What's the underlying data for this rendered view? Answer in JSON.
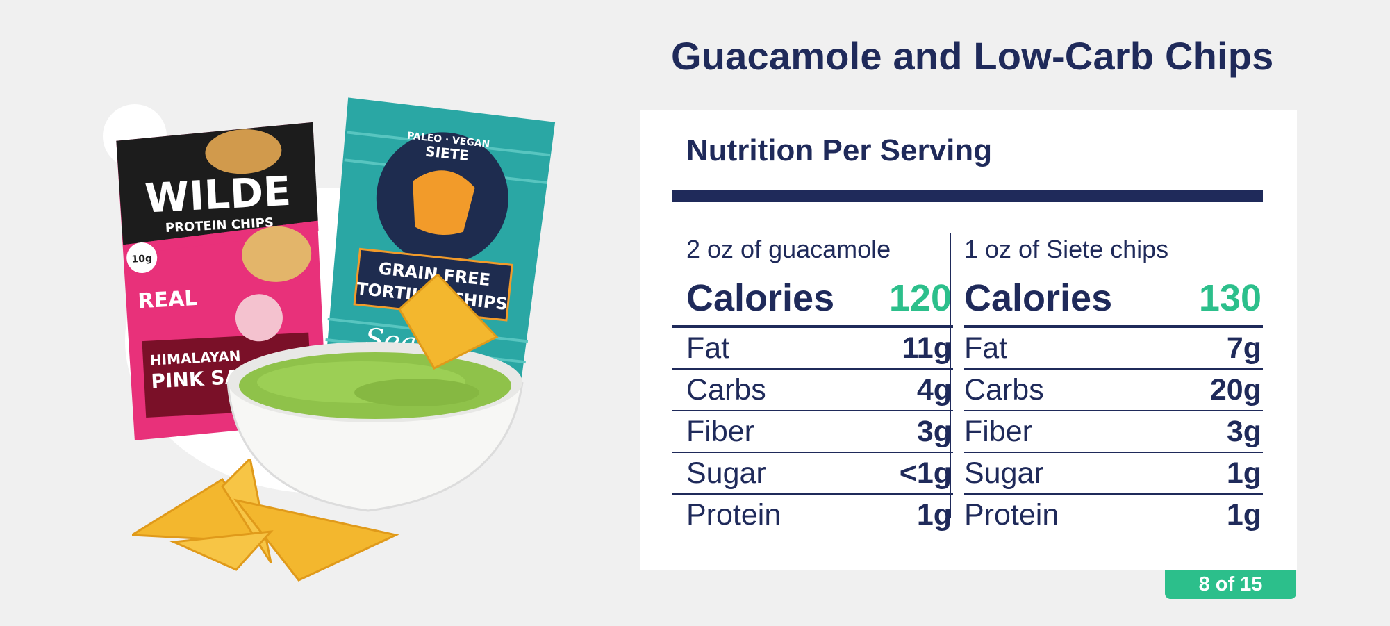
{
  "title": "Guacamole and Low-Carb Chips",
  "card": {
    "heading": "Nutrition Per Serving",
    "columns": [
      {
        "serving": "2 oz of guacamole",
        "calories_label": "Calories",
        "calories_value": "120",
        "rows": [
          {
            "label": "Fat",
            "value": "11g"
          },
          {
            "label": "Carbs",
            "value": "4g"
          },
          {
            "label": "Fiber",
            "value": "3g"
          },
          {
            "label": "Sugar",
            "value": "<1g"
          },
          {
            "label": "Protein",
            "value": "1g"
          }
        ]
      },
      {
        "serving": "1 oz of Siete chips",
        "calories_label": "Calories",
        "calories_value": "130",
        "rows": [
          {
            "label": "Fat",
            "value": "7g"
          },
          {
            "label": "Carbs",
            "value": "20g"
          },
          {
            "label": "Fiber",
            "value": "3g"
          },
          {
            "label": "Sugar",
            "value": "1g"
          },
          {
            "label": "Protein",
            "value": "1g"
          }
        ]
      }
    ]
  },
  "pager": "8 of 15",
  "illustration": {
    "wilde_bag": {
      "brand": "WILDE",
      "line": "PROTEIN CHIPS",
      "flavor_1": "HIMALAYAN",
      "flavor_2": "PINK SALT",
      "badge": "10g",
      "real": "REAL"
    },
    "siete_bag": {
      "brand": "SIETE",
      "tag": "PALEO · VEGAN",
      "line_1": "GRAIN FREE",
      "line_2": "TORTILLA CHIPS",
      "flavor": "Sea"
    }
  },
  "colors": {
    "navy": "#1f2a5a",
    "accent_green": "#2cbf8b",
    "background": "#f0f0f0",
    "card": "#ffffff"
  }
}
